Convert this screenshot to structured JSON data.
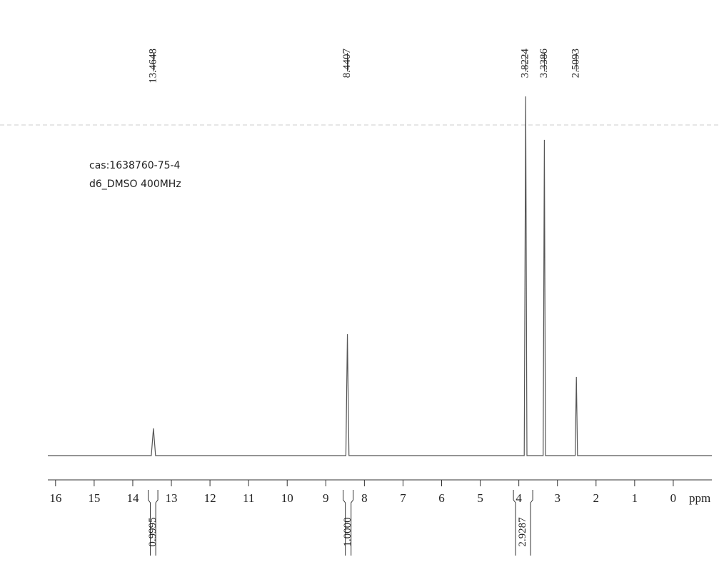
{
  "chart_data": {
    "type": "line",
    "annotations": [
      "cas:1638760-75-4",
      "d6_DMSO 400MHz"
    ],
    "xlabel": "ppm",
    "xlim": [
      16.2,
      -1.0
    ],
    "ylim": [
      0,
      100
    ],
    "xticks": [
      16,
      15,
      14,
      13,
      12,
      11,
      10,
      9,
      8,
      7,
      6,
      5,
      4,
      3,
      2,
      1,
      0
    ],
    "series": [
      {
        "color": "#555555",
        "x": [
          16.2,
          13.52,
          13.4648,
          13.41,
          8.48,
          8.4407,
          8.4,
          3.86,
          3.8224,
          3.79,
          3.37,
          3.3386,
          3.31,
          2.54,
          2.5093,
          2.48,
          -1.0
        ],
        "values": [
          0,
          0,
          7.6,
          0,
          0,
          33.8,
          0,
          0,
          100,
          0,
          0,
          87.9,
          0,
          0,
          21.9,
          0,
          0
        ]
      }
    ],
    "peaks": [
      13.4648,
      8.4407,
      3.8224,
      3.3386,
      2.5093
    ],
    "integrals": [
      {
        "from": 13.6,
        "to": 13.35,
        "label": "0.9995"
      },
      {
        "from": 8.55,
        "to": 8.29,
        "label": "1.0000"
      },
      {
        "from": 4.14,
        "to": 3.64,
        "label": "2.9287"
      }
    ]
  }
}
